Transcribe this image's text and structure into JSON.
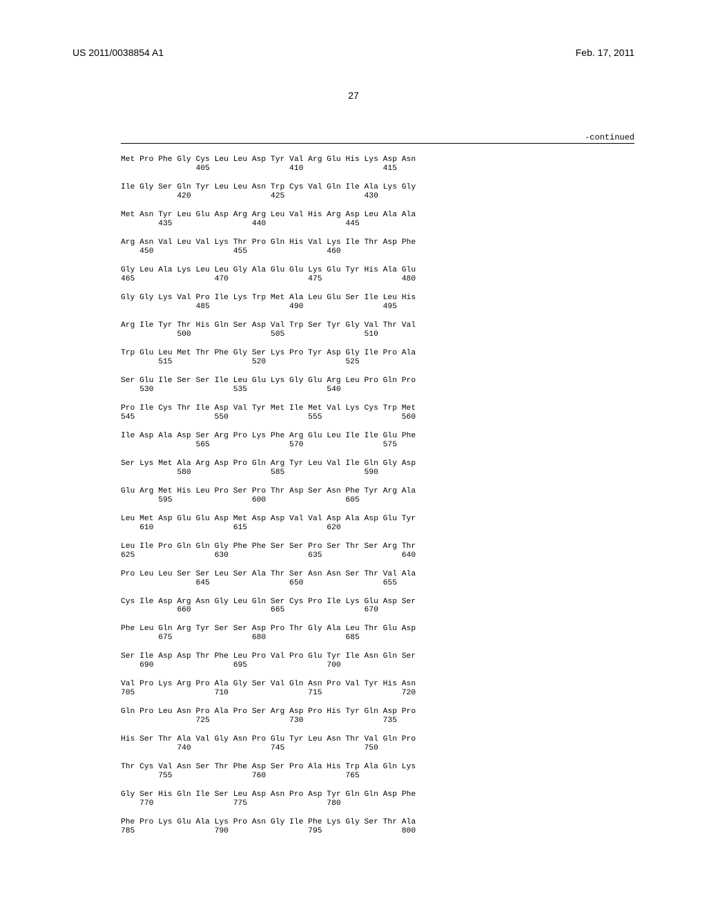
{
  "header": {
    "pubNumber": "US 2011/0038854 A1",
    "pubDate": "Feb. 17, 2011"
  },
  "pageNumber": "27",
  "continuedLabel": "-continued",
  "sequence": {
    "rows": [
      {
        "aa": "Met Pro Phe Gly Cys Leu Leu Asp Tyr Val Arg Glu His Lys Asp Asn",
        "nums": "                405                 410                 415"
      },
      {
        "aa": "Ile Gly Ser Gln Tyr Leu Leu Asn Trp Cys Val Gln Ile Ala Lys Gly",
        "nums": "            420                 425                 430"
      },
      {
        "aa": "Met Asn Tyr Leu Glu Asp Arg Arg Leu Val His Arg Asp Leu Ala Ala",
        "nums": "        435                 440                 445"
      },
      {
        "aa": "Arg Asn Val Leu Val Lys Thr Pro Gln His Val Lys Ile Thr Asp Phe",
        "nums": "    450                 455                 460"
      },
      {
        "aa": "Gly Leu Ala Lys Leu Leu Gly Ala Glu Glu Lys Glu Tyr His Ala Glu",
        "nums": "465                 470                 475                 480"
      },
      {
        "aa": "Gly Gly Lys Val Pro Ile Lys Trp Met Ala Leu Glu Ser Ile Leu His",
        "nums": "                485                 490                 495"
      },
      {
        "aa": "Arg Ile Tyr Thr His Gln Ser Asp Val Trp Ser Tyr Gly Val Thr Val",
        "nums": "            500                 505                 510"
      },
      {
        "aa": "Trp Glu Leu Met Thr Phe Gly Ser Lys Pro Tyr Asp Gly Ile Pro Ala",
        "nums": "        515                 520                 525"
      },
      {
        "aa": "Ser Glu Ile Ser Ser Ile Leu Glu Lys Gly Glu Arg Leu Pro Gln Pro",
        "nums": "    530                 535                 540"
      },
      {
        "aa": "Pro Ile Cys Thr Ile Asp Val Tyr Met Ile Met Val Lys Cys Trp Met",
        "nums": "545                 550                 555                 560"
      },
      {
        "aa": "Ile Asp Ala Asp Ser Arg Pro Lys Phe Arg Glu Leu Ile Ile Glu Phe",
        "nums": "                565                 570                 575"
      },
      {
        "aa": "Ser Lys Met Ala Arg Asp Pro Gln Arg Tyr Leu Val Ile Gln Gly Asp",
        "nums": "            580                 585                 590"
      },
      {
        "aa": "Glu Arg Met His Leu Pro Ser Pro Thr Asp Ser Asn Phe Tyr Arg Ala",
        "nums": "        595                 600                 605"
      },
      {
        "aa": "Leu Met Asp Glu Glu Asp Met Asp Asp Val Val Asp Ala Asp Glu Tyr",
        "nums": "    610                 615                 620"
      },
      {
        "aa": "Leu Ile Pro Gln Gln Gly Phe Phe Ser Ser Pro Ser Thr Ser Arg Thr",
        "nums": "625                 630                 635                 640"
      },
      {
        "aa": "Pro Leu Leu Ser Ser Leu Ser Ala Thr Ser Asn Asn Ser Thr Val Ala",
        "nums": "                645                 650                 655"
      },
      {
        "aa": "Cys Ile Asp Arg Asn Gly Leu Gln Ser Cys Pro Ile Lys Glu Asp Ser",
        "nums": "            660                 665                 670"
      },
      {
        "aa": "Phe Leu Gln Arg Tyr Ser Ser Asp Pro Thr Gly Ala Leu Thr Glu Asp",
        "nums": "        675                 680                 685"
      },
      {
        "aa": "Ser Ile Asp Asp Thr Phe Leu Pro Val Pro Glu Tyr Ile Asn Gln Ser",
        "nums": "    690                 695                 700"
      },
      {
        "aa": "Val Pro Lys Arg Pro Ala Gly Ser Val Gln Asn Pro Val Tyr His Asn",
        "nums": "705                 710                 715                 720"
      },
      {
        "aa": "Gln Pro Leu Asn Pro Ala Pro Ser Arg Asp Pro His Tyr Gln Asp Pro",
        "nums": "                725                 730                 735"
      },
      {
        "aa": "His Ser Thr Ala Val Gly Asn Pro Glu Tyr Leu Asn Thr Val Gln Pro",
        "nums": "            740                 745                 750"
      },
      {
        "aa": "Thr Cys Val Asn Ser Thr Phe Asp Ser Pro Ala His Trp Ala Gln Lys",
        "nums": "        755                 760                 765"
      },
      {
        "aa": "Gly Ser His Gln Ile Ser Leu Asp Asn Pro Asp Tyr Gln Gln Asp Phe",
        "nums": "    770                 775                 780"
      },
      {
        "aa": "Phe Pro Lys Glu Ala Lys Pro Asn Gly Ile Phe Lys Gly Ser Thr Ala",
        "nums": "785                 790                 795                 800"
      }
    ]
  }
}
